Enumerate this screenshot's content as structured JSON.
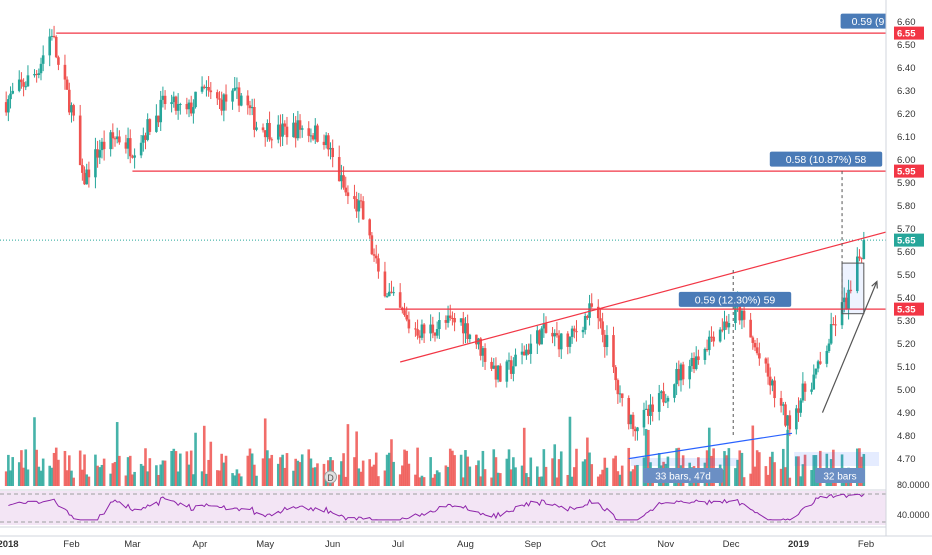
{
  "chart_data": {
    "type": "candlestick",
    "x_axis_labels": [
      "2018",
      "Feb",
      "Mar",
      "Apr",
      "May",
      "Jun",
      "Jul",
      "Aug",
      "Sep",
      "Oct",
      "Nov",
      "Dec",
      "2019",
      "Feb"
    ],
    "y_axis_ticks": [
      "6.60",
      "6.50",
      "6.40",
      "6.30",
      "6.20",
      "6.10",
      "6.00",
      "5.90",
      "5.80",
      "5.70",
      "5.60",
      "5.50",
      "5.40",
      "5.30",
      "5.20",
      "5.10",
      "5.00",
      "4.90",
      "4.80",
      "4.70"
    ],
    "ylim": [
      4.66,
      6.62
    ],
    "price_tags": [
      {
        "label": "6.55",
        "price": 6.55,
        "color": "#f23645"
      },
      {
        "label": "5.95",
        "price": 5.95,
        "color": "#f23645"
      },
      {
        "label": "5.65",
        "price": 5.65,
        "color": "#26a69a"
      },
      {
        "label": "5.35",
        "price": 5.35,
        "color": "#f23645"
      }
    ],
    "horizontal_lines": [
      {
        "price": 6.55,
        "from": "2018-01-25",
        "to": "2019-02-28"
      },
      {
        "price": 5.95,
        "from": "2018-03-01",
        "to": "2019-02-28"
      },
      {
        "price": 5.35,
        "from": "2018-06-25",
        "to": "2019-02-28"
      }
    ],
    "trend_lines": [
      {
        "from": [
          "2018-07-02",
          5.12
        ],
        "to": [
          "2019-02-28",
          5.73
        ],
        "color": "#f23645"
      },
      {
        "from": [
          "2018-10-15",
          4.7
        ],
        "to": [
          "2018-12-29",
          4.81
        ],
        "color": "#2962ff"
      },
      {
        "from": [
          "2019-01-12",
          4.9
        ],
        "to": [
          "2019-02-06",
          5.47
        ],
        "color": "#555555",
        "arrow": true
      }
    ],
    "measure_labels": [
      {
        "text": "0.59 (9",
        "price": 6.6
      },
      {
        "text": "0.58 (10.87%) 58",
        "price": 6.0
      },
      {
        "text": "0.59 (12.30%) 59",
        "price": 5.39
      }
    ],
    "range_labels": [
      "33 bars, 47d",
      "32 bars"
    ],
    "rsi_ticks": [
      "80.0000",
      "40.0000"
    ],
    "ohlc": [
      {
        "date": "2018-01-02",
        "close": 6.25
      },
      {
        "date": "2018-01-09",
        "close": 6.32
      },
      {
        "date": "2018-01-16",
        "close": 6.38
      },
      {
        "date": "2018-01-23",
        "close": 6.56
      },
      {
        "date": "2018-01-26",
        "close": 6.4
      },
      {
        "date": "2018-02-01",
        "close": 6.22
      },
      {
        "date": "2018-02-06",
        "close": 5.9
      },
      {
        "date": "2018-02-14",
        "close": 6.05
      },
      {
        "date": "2018-02-22",
        "close": 6.1
      },
      {
        "date": "2018-03-01",
        "close": 6.05
      },
      {
        "date": "2018-03-09",
        "close": 6.15
      },
      {
        "date": "2018-03-16",
        "close": 6.25
      },
      {
        "date": "2018-03-26",
        "close": 6.2
      },
      {
        "date": "2018-04-02",
        "close": 6.3
      },
      {
        "date": "2018-04-10",
        "close": 6.25
      },
      {
        "date": "2018-04-20",
        "close": 6.28
      },
      {
        "date": "2018-04-27",
        "close": 6.15
      },
      {
        "date": "2018-05-07",
        "close": 6.12
      },
      {
        "date": "2018-05-17",
        "close": 6.14
      },
      {
        "date": "2018-05-28",
        "close": 6.1
      },
      {
        "date": "2018-06-01",
        "close": 6.0
      },
      {
        "date": "2018-06-07",
        "close": 5.85
      },
      {
        "date": "2018-06-14",
        "close": 5.78
      },
      {
        "date": "2018-06-22",
        "close": 5.5
      },
      {
        "date": "2018-06-29",
        "close": 5.38
      },
      {
        "date": "2018-07-06",
        "close": 5.28
      },
      {
        "date": "2018-07-13",
        "close": 5.25
      },
      {
        "date": "2018-07-20",
        "close": 5.28
      },
      {
        "date": "2018-07-30",
        "close": 5.3
      },
      {
        "date": "2018-08-08",
        "close": 5.18
      },
      {
        "date": "2018-08-17",
        "close": 5.05
      },
      {
        "date": "2018-08-27",
        "close": 5.15
      },
      {
        "date": "2018-09-05",
        "close": 5.25
      },
      {
        "date": "2018-09-17",
        "close": 5.2
      },
      {
        "date": "2018-09-24",
        "close": 5.3
      },
      {
        "date": "2018-09-28",
        "close": 5.35
      },
      {
        "date": "2018-10-05",
        "close": 5.2
      },
      {
        "date": "2018-10-11",
        "close": 4.95
      },
      {
        "date": "2018-10-18",
        "close": 4.85
      },
      {
        "date": "2018-10-26",
        "close": 4.9
      },
      {
        "date": "2018-11-05",
        "close": 5.05
      },
      {
        "date": "2018-11-16",
        "close": 5.15
      },
      {
        "date": "2018-11-23",
        "close": 5.25
      },
      {
        "date": "2018-11-30",
        "close": 5.3
      },
      {
        "date": "2018-12-04",
        "close": 5.35
      },
      {
        "date": "2018-12-11",
        "close": 5.2
      },
      {
        "date": "2018-12-18",
        "close": 5.05
      },
      {
        "date": "2018-12-27",
        "close": 4.85
      },
      {
        "date": "2019-01-04",
        "close": 5.0
      },
      {
        "date": "2019-01-11",
        "close": 5.1
      },
      {
        "date": "2019-01-18",
        "close": 5.3
      },
      {
        "date": "2019-01-25",
        "close": 5.42
      },
      {
        "date": "2019-01-31",
        "close": 5.65
      }
    ]
  }
}
